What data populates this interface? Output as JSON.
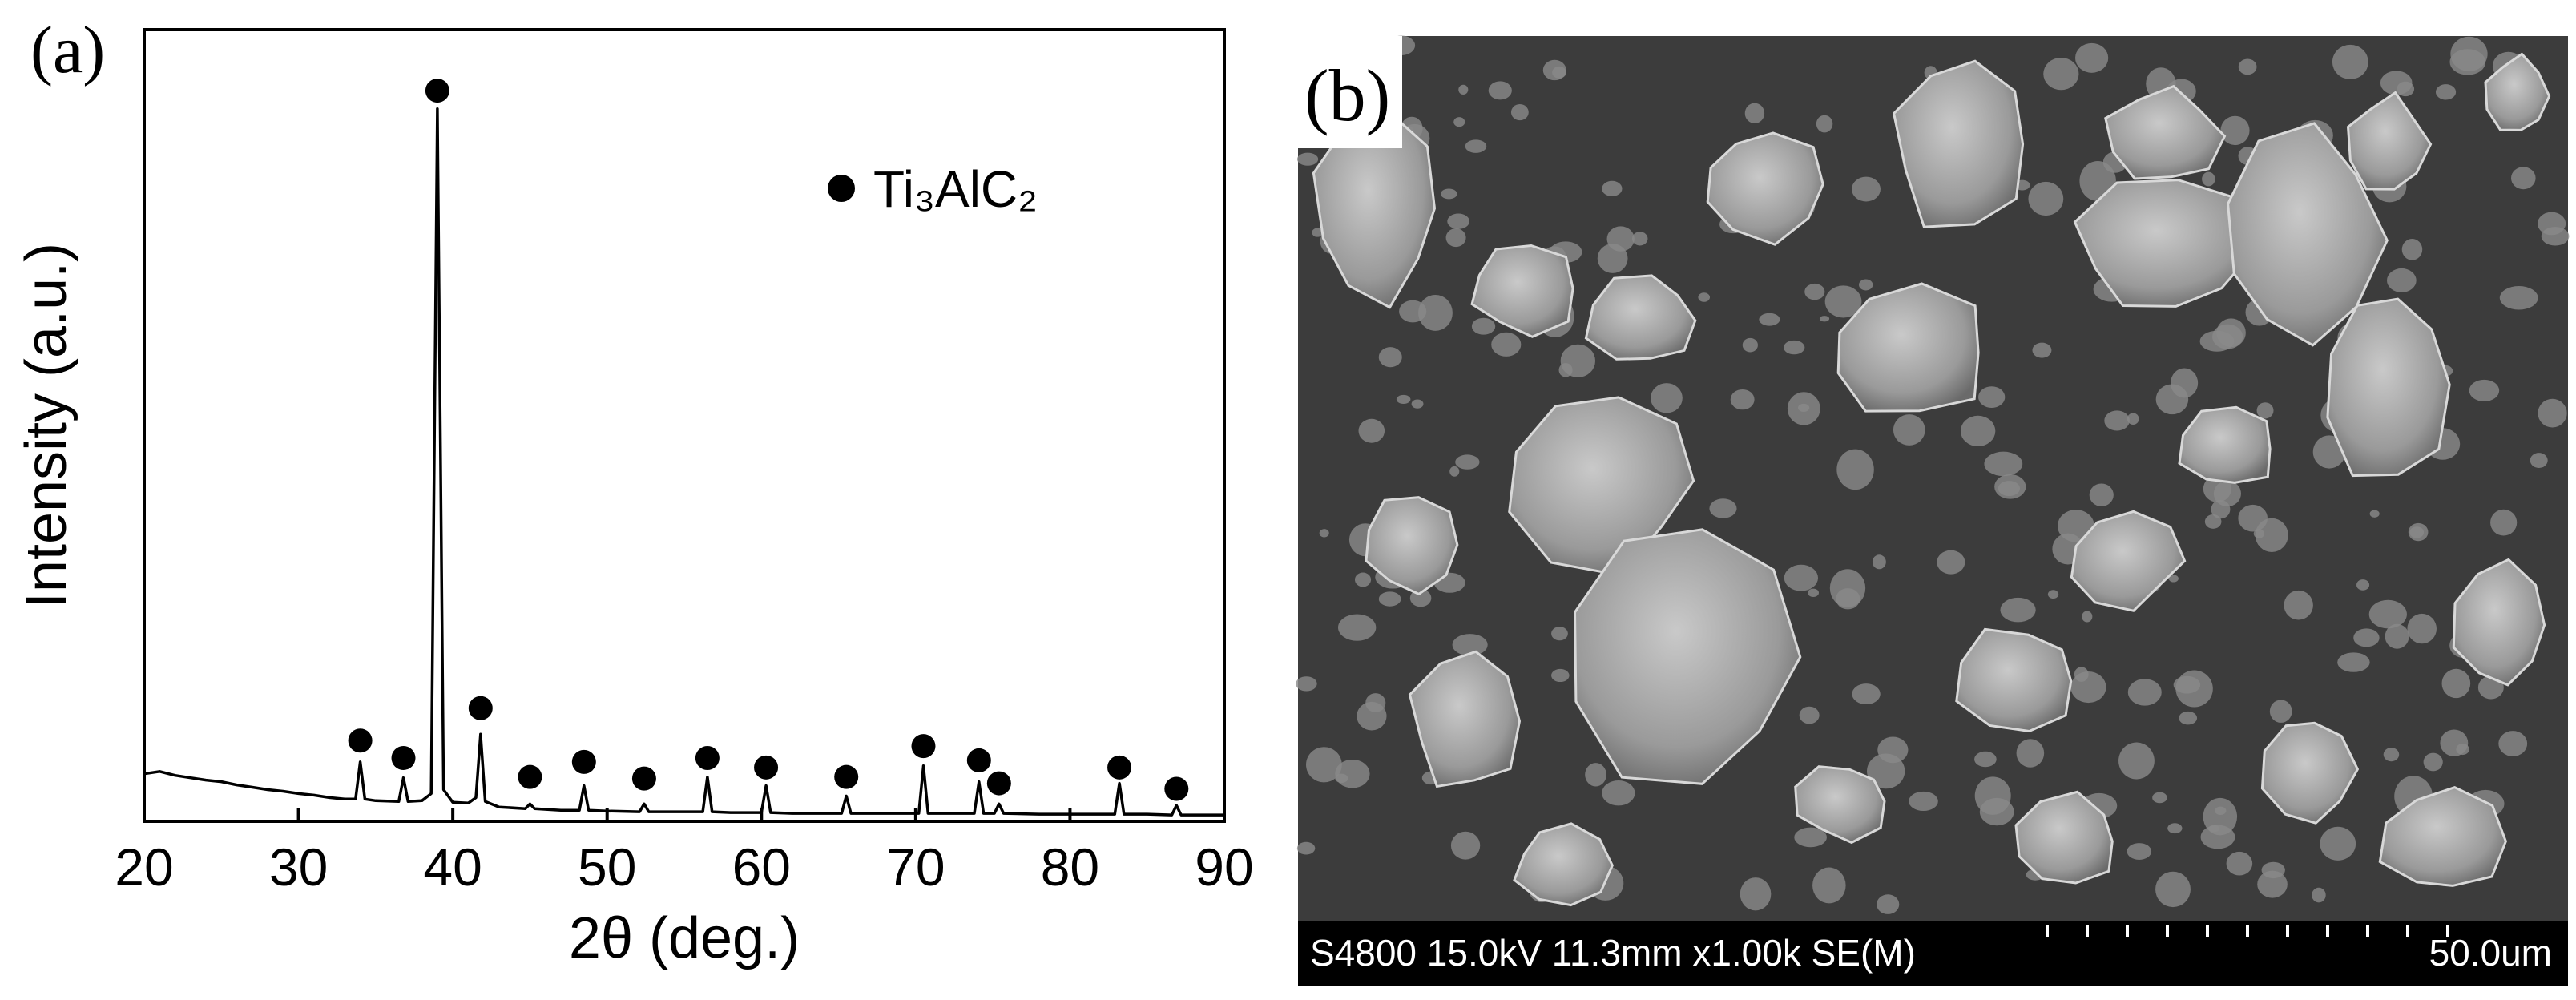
{
  "chart_data": {
    "type": "line",
    "panel_label": "(a)",
    "x_label": "2θ (deg.)",
    "y_label": "Intensity (a.u.)",
    "x": [
      20,
      21,
      22,
      23,
      24,
      25,
      26,
      27,
      28,
      29,
      30,
      31,
      32,
      33,
      33.7,
      34,
      34.3,
      35,
      36.5,
      36.8,
      37.1,
      38,
      38.6,
      39,
      39.4,
      40,
      41,
      41.5,
      41.8,
      42.1,
      43,
      44.7,
      45,
      45.3,
      47,
      48.2,
      48.5,
      48.8,
      50,
      52.1,
      52.4,
      52.7,
      54,
      56.2,
      56.5,
      56.8,
      58,
      60,
      60.3,
      60.6,
      62,
      65.2,
      65.5,
      65.8,
      68,
      70.2,
      70.5,
      70.8,
      72,
      73.8,
      74.1,
      74.4,
      75.1,
      75.4,
      75.7,
      78,
      80,
      82.9,
      83.2,
      83.5,
      85,
      86.6,
      86.9,
      87.2,
      88,
      89,
      90
    ],
    "series": [
      {
        "color": "#000000",
        "values": [
          6,
          6.3,
          5.8,
          5.5,
          5.2,
          5,
          4.6,
          4.3,
          4,
          3.8,
          3.5,
          3.3,
          3,
          2.8,
          2.8,
          7.5,
          2.8,
          2.6,
          2.5,
          5.5,
          2.5,
          2.6,
          3.5,
          90,
          4,
          2.4,
          2.3,
          3,
          11,
          2.5,
          1.8,
          1.6,
          2.2,
          1.6,
          1.4,
          1.4,
          4.5,
          1.4,
          1.3,
          1.2,
          2.2,
          1.2,
          1.2,
          1.2,
          5.6,
          1.2,
          1.1,
          1.1,
          4.5,
          1.1,
          1,
          1,
          3.2,
          1,
          1,
          1,
          7,
          1,
          1,
          1,
          5,
          1,
          1,
          2.2,
          1,
          0.9,
          0.9,
          0.9,
          4.8,
          0.9,
          0.9,
          0.8,
          2,
          0.8,
          0.8,
          0.8,
          0.8
        ]
      }
    ],
    "peak_markers": {
      "name": "Ti₃AlC₂",
      "color": "#000000",
      "x": [
        34,
        36.8,
        39,
        41.8,
        45,
        48.5,
        52.4,
        56.5,
        60.3,
        65.5,
        70.5,
        74.1,
        75.4,
        83.2,
        86.9
      ],
      "values": [
        10.2,
        8,
        92.3,
        14.3,
        5.6,
        7.5,
        5.4,
        8,
        6.8,
        5.6,
        9.5,
        7.7,
        4.8,
        6.8,
        4.1
      ]
    },
    "xlim": [
      20,
      90
    ],
    "xticks": [
      20,
      30,
      40,
      50,
      60,
      70,
      80,
      90
    ],
    "ylim": [
      0,
      100
    ]
  },
  "sem_image": {
    "panel_label": "(b)",
    "info": "S4800 15.0kV 11.3mm x1.00k SE(M)",
    "scale_bar": "50.0um"
  }
}
